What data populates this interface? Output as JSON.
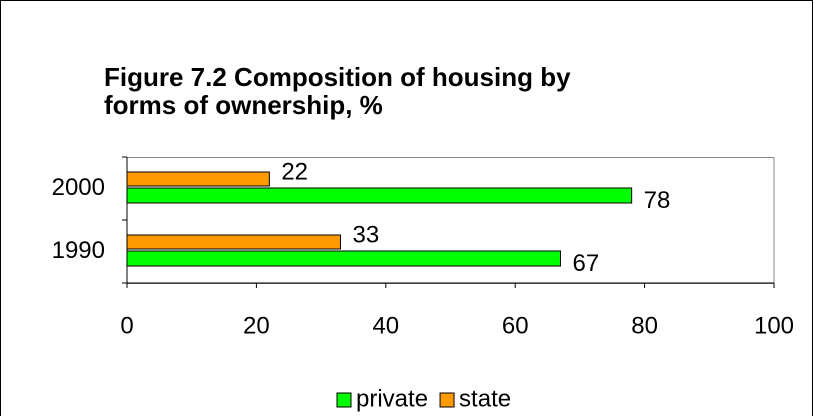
{
  "chart_data": {
    "type": "bar",
    "orientation": "horizontal",
    "title": [
      "Figure 7.2  Composition of housing by",
      "forms of ownership, %"
    ],
    "categories": [
      "1990",
      "2000"
    ],
    "series": [
      {
        "name": "private",
        "color": "#00ff00",
        "values": [
          67,
          78
        ]
      },
      {
        "name": "state",
        "color": "#ff9900",
        "values": [
          33,
          22
        ]
      }
    ],
    "xlim": [
      0,
      100
    ],
    "xticks": [
      0,
      20,
      40,
      60,
      80,
      100
    ],
    "legend": "bottom"
  }
}
